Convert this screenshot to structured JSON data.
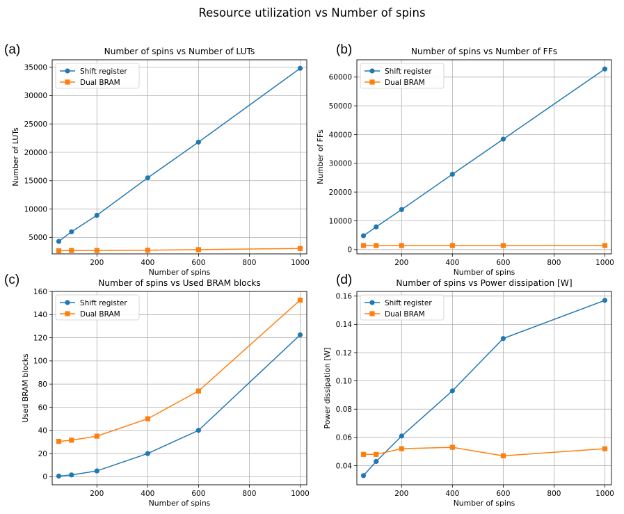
{
  "figure": {
    "suptitle": "Resource utilization vs Number of spins",
    "colors": {
      "shift": "#1f77b4",
      "bram": "#ff7f0e",
      "grid": "#b0b0b0"
    }
  },
  "chart_data": [
    {
      "panel": "(a)",
      "type": "line",
      "title": "Number of spins vs Number of LUTs",
      "xlabel": "Number of spins",
      "ylabel": "Number of LUTs",
      "xlim": [
        24,
        1026
      ],
      "ylim": [
        2100,
        36300
      ],
      "xticks": [
        200,
        400,
        600,
        800,
        1000
      ],
      "yticks": [
        5000,
        10000,
        15000,
        20000,
        25000,
        30000,
        35000
      ],
      "grid": true,
      "legend_position": "top-left",
      "x": [
        50,
        100,
        200,
        400,
        600,
        1000
      ],
      "series": [
        {
          "name": "Shift register",
          "marker": "circle",
          "values": [
            4300,
            6000,
            8900,
            15500,
            21800,
            34800
          ]
        },
        {
          "name": "Dual BRAM",
          "marker": "square",
          "values": [
            2650,
            2700,
            2700,
            2750,
            2850,
            3050
          ]
        }
      ]
    },
    {
      "panel": "(b)",
      "type": "line",
      "title": "Number of spins vs Number of FFs",
      "xlabel": "Number of spins",
      "ylabel": "Number of FFs",
      "xlim": [
        24,
        1026
      ],
      "ylim": [
        -1500,
        66000
      ],
      "xticks": [
        200,
        400,
        600,
        800,
        1000
      ],
      "yticks": [
        0,
        10000,
        20000,
        30000,
        40000,
        50000,
        60000
      ],
      "grid": true,
      "legend_position": "top-left",
      "x": [
        50,
        100,
        200,
        400,
        600,
        1000
      ],
      "series": [
        {
          "name": "Shift register",
          "marker": "circle",
          "values": [
            4800,
            7900,
            13900,
            26200,
            38400,
            62800
          ]
        },
        {
          "name": "Dual BRAM",
          "marker": "square",
          "values": [
            1400,
            1400,
            1400,
            1400,
            1400,
            1400
          ]
        }
      ]
    },
    {
      "panel": "(c)",
      "type": "line",
      "title": "Number of spins vs Used BRAM blocks",
      "xlabel": "Number of spins",
      "ylabel": "Used BRAM blocks",
      "xlim": [
        24,
        1026
      ],
      "ylim": [
        -7,
        160
      ],
      "xticks": [
        200,
        400,
        600,
        800,
        1000
      ],
      "yticks": [
        0,
        20,
        40,
        60,
        80,
        100,
        120,
        140,
        160
      ],
      "grid": true,
      "legend_position": "top-left",
      "x": [
        50,
        100,
        200,
        400,
        600,
        1000
      ],
      "series": [
        {
          "name": "Shift register",
          "marker": "circle",
          "values": [
            0.5,
            1.5,
            5,
            20,
            40,
            122.5
          ]
        },
        {
          "name": "Dual BRAM",
          "marker": "square",
          "values": [
            30.5,
            31.5,
            35,
            50,
            74,
            152.5
          ]
        }
      ]
    },
    {
      "panel": "(d)",
      "type": "line",
      "title": "Number of spins vs Power dissipation [W]",
      "xlabel": "Number of spins",
      "ylabel": "Power dissipation [W]",
      "xlim": [
        24,
        1026
      ],
      "ylim": [
        0.0265,
        0.1633
      ],
      "xticks": [
        200,
        400,
        600,
        800,
        1000
      ],
      "yticks": [
        0.04,
        0.06,
        0.08,
        0.1,
        0.12,
        0.14,
        0.16
      ],
      "grid": true,
      "legend_position": "top-left",
      "x": [
        50,
        100,
        200,
        400,
        600,
        1000
      ],
      "series": [
        {
          "name": "Shift register",
          "marker": "circle",
          "values": [
            0.033,
            0.043,
            0.061,
            0.093,
            0.13,
            0.157
          ]
        },
        {
          "name": "Dual BRAM",
          "marker": "square",
          "values": [
            0.048,
            0.048,
            0.052,
            0.053,
            0.047,
            0.052
          ]
        }
      ]
    }
  ]
}
